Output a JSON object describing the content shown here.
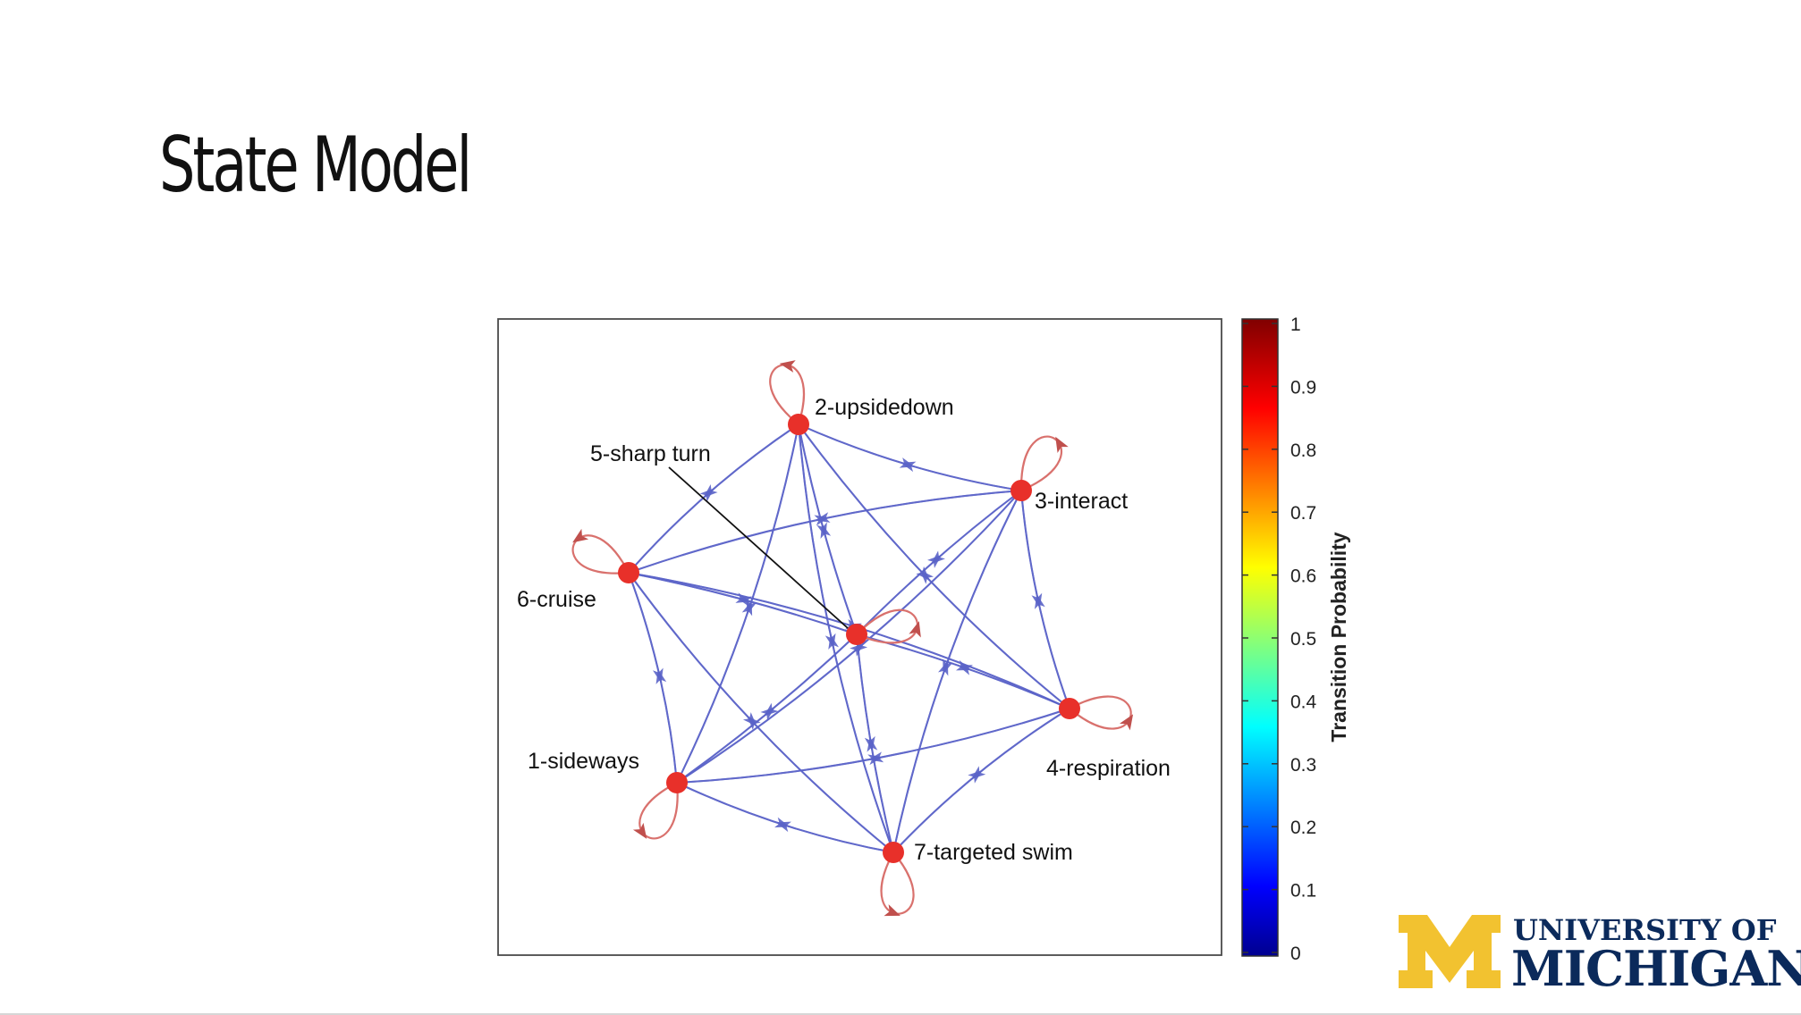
{
  "slide": {
    "title": "State Model"
  },
  "diagram": {
    "nodes": [
      {
        "id": 1,
        "label": "1-sideways"
      },
      {
        "id": 2,
        "label": "2-upsidedown"
      },
      {
        "id": 3,
        "label": "3-interact"
      },
      {
        "id": 4,
        "label": "4-respiration"
      },
      {
        "id": 5,
        "label": "5-sharp turn"
      },
      {
        "id": 6,
        "label": "6-cruise"
      },
      {
        "id": 7,
        "label": "7-targeted swim"
      }
    ],
    "colorbar": {
      "label": "Transition Probability",
      "ticks": [
        "0",
        "0.1",
        "0.2",
        "0.3",
        "0.4",
        "0.5",
        "0.6",
        "0.7",
        "0.8",
        "0.9",
        "1"
      ]
    },
    "colors": {
      "node": "#e8302a",
      "edge": "#5a63c8",
      "self_loop": "#d9716d",
      "frame": "#4a4a4a"
    }
  },
  "logo": {
    "line1": "UNIVERSITY OF",
    "line2": "MICHIGAN",
    "colors": {
      "maize": "#f2c230",
      "blue": "#0b2a5b"
    }
  }
}
